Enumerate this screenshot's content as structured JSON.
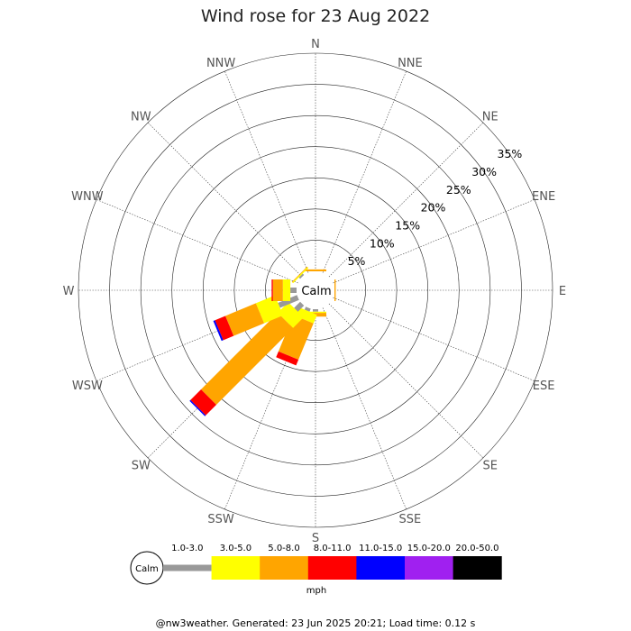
{
  "title": "Wind rose for 23 Aug 2022",
  "footer": "@nw3weather. Generated: 23 Jun 2025 20:21; Load time: 0.12 s",
  "calm_label": "Calm",
  "unit": "mph",
  "directions": [
    "N",
    "NNE",
    "NE",
    "ENE",
    "E",
    "ESE",
    "SE",
    "SSE",
    "S",
    "SSW",
    "SW",
    "WSW",
    "W",
    "WNW",
    "NW",
    "NNW"
  ],
  "ring_labels": [
    "5%",
    "10%",
    "15%",
    "20%",
    "25%",
    "30%",
    "35%"
  ],
  "chart_data": {
    "type": "wind-rose",
    "title": "Wind rose for 23 Aug 2022",
    "radial_max_percent": 35,
    "ring_step_percent": 5,
    "speed_bins": [
      {
        "label": "1.0-3.0",
        "color": "#999999"
      },
      {
        "label": "3.0-5.0",
        "color": "#ffff00"
      },
      {
        "label": "5.0-8.0",
        "color": "#ffa500"
      },
      {
        "label": "8.0-11.0",
        "color": "#ff0000"
      },
      {
        "label": "11.0-15.0",
        "color": "#0000ff"
      },
      {
        "label": "15.0-20.0",
        "color": "#a020f0"
      },
      {
        "label": "20.0-50.0",
        "color": "#000000"
      }
    ],
    "series": [
      {
        "direction": "N",
        "values": [
          0,
          0,
          0.3,
          0,
          0,
          0,
          0
        ]
      },
      {
        "direction": "NNE",
        "values": [
          0,
          0,
          0,
          0,
          0,
          0,
          0
        ]
      },
      {
        "direction": "NE",
        "values": [
          0,
          0,
          0,
          0,
          0,
          0,
          0
        ]
      },
      {
        "direction": "ENE",
        "values": [
          0,
          0,
          0,
          0,
          0,
          0,
          0
        ]
      },
      {
        "direction": "E",
        "values": [
          0,
          0,
          0.2,
          0,
          0,
          0,
          0
        ]
      },
      {
        "direction": "ESE",
        "values": [
          0,
          0,
          0,
          0,
          0,
          0,
          0
        ]
      },
      {
        "direction": "SE",
        "values": [
          0,
          0,
          0,
          0,
          0,
          0,
          0
        ]
      },
      {
        "direction": "SSE",
        "values": [
          0,
          0,
          0,
          0,
          0,
          0,
          0
        ]
      },
      {
        "direction": "S",
        "values": [
          0.4,
          0.2,
          0.6,
          0,
          0,
          0,
          0
        ]
      },
      {
        "direction": "SSW",
        "values": [
          0.5,
          1.5,
          6.3,
          1.0,
          0,
          0,
          0
        ]
      },
      {
        "direction": "SW",
        "values": [
          1.4,
          2.4,
          17.4,
          2.4,
          0.2,
          0,
          0
        ]
      },
      {
        "direction": "WSW",
        "values": [
          3.3,
          3.3,
          5.3,
          1.8,
          0.3,
          0,
          0
        ]
      },
      {
        "direction": "W",
        "values": [
          1.0,
          1.2,
          1.6,
          0.2,
          0,
          0,
          0
        ]
      },
      {
        "direction": "WNW",
        "values": [
          0,
          0,
          0,
          0,
          0,
          0,
          0
        ]
      },
      {
        "direction": "NW",
        "values": [
          0.3,
          0.2,
          0.1,
          0,
          0,
          0,
          0
        ]
      },
      {
        "direction": "NNW",
        "values": [
          0,
          0,
          0,
          0,
          0,
          0,
          0
        ]
      }
    ]
  }
}
